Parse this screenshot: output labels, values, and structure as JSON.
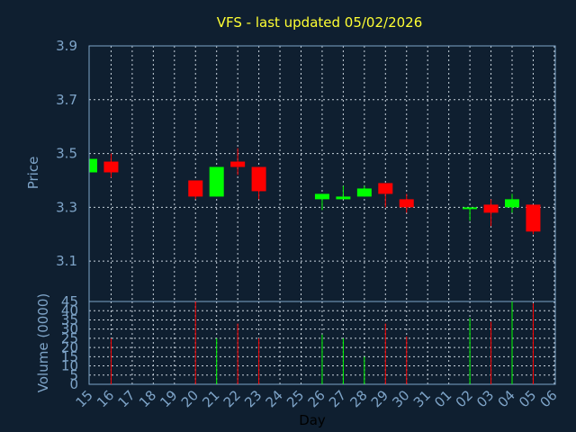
{
  "colors": {
    "background": "#0f1f30",
    "title": "#ffff33",
    "axis_text": "#7ea4c8",
    "up": "#00ff00",
    "down": "#ff0000",
    "grid": "#c8d2dc"
  },
  "chart_data": {
    "type": "candlestick",
    "title": "VFS - last updated 05/02/2026",
    "xlabel": "Day",
    "price_axis": {
      "label": "Price",
      "range": [
        2.95,
        3.9
      ],
      "ticks": [
        "3.9",
        "3.7",
        "3.5",
        "3.3",
        "3.1"
      ],
      "grid": true
    },
    "volume_axis": {
      "label": "Volume (0000)",
      "unit": "x10000",
      "range": [
        0,
        45
      ],
      "ticks": [
        "45",
        "40",
        "35",
        "30",
        "25",
        "20",
        "15",
        "10",
        "5",
        "0"
      ],
      "grid": true
    },
    "x_ticks": [
      "15",
      "16",
      "17",
      "18",
      "19",
      "20",
      "21",
      "22",
      "23",
      "24",
      "25",
      "26",
      "27",
      "28",
      "29",
      "30",
      "31",
      "01",
      "02",
      "03",
      "04",
      "05",
      "06"
    ],
    "candles": [
      {
        "day": "15",
        "open": 3.43,
        "high": 3.48,
        "low": 3.43,
        "close": 3.48,
        "volume": null
      },
      {
        "day": "16",
        "open": 3.47,
        "high": 3.5,
        "low": 3.41,
        "close": 3.43,
        "volume": 25
      },
      {
        "day": "20",
        "open": 3.4,
        "high": 3.4,
        "low": 3.33,
        "close": 3.34,
        "volume": 45
      },
      {
        "day": "21",
        "open": 3.34,
        "high": 3.45,
        "low": 3.34,
        "close": 3.45,
        "volume": 25
      },
      {
        "day": "22",
        "open": 3.47,
        "high": 3.52,
        "low": 3.42,
        "close": 3.45,
        "volume": 33
      },
      {
        "day": "23",
        "open": 3.45,
        "high": 3.45,
        "low": 3.33,
        "close": 3.36,
        "volume": 25
      },
      {
        "day": "26",
        "open": 3.33,
        "high": 3.35,
        "low": 3.29,
        "close": 3.35,
        "volume": 27
      },
      {
        "day": "27",
        "open": 3.33,
        "high": 3.38,
        "low": 3.33,
        "close": 3.34,
        "volume": 25
      },
      {
        "day": "28",
        "open": 3.34,
        "high": 3.38,
        "low": 3.34,
        "close": 3.37,
        "volume": 15
      },
      {
        "day": "29",
        "open": 3.39,
        "high": 3.39,
        "low": 3.3,
        "close": 3.35,
        "volume": 33
      },
      {
        "day": "30",
        "open": 3.33,
        "high": 3.35,
        "low": 3.28,
        "close": 3.3,
        "volume": 26
      },
      {
        "day": "02",
        "open": 3.3,
        "high": 3.3,
        "low": 3.25,
        "close": 3.3,
        "volume": 36
      },
      {
        "day": "03",
        "open": 3.31,
        "high": 3.33,
        "low": 3.23,
        "close": 3.28,
        "volume": 34
      },
      {
        "day": "04",
        "open": 3.3,
        "high": 3.35,
        "low": 3.28,
        "close": 3.33,
        "volume": 45
      },
      {
        "day": "05",
        "open": 3.31,
        "high": 3.31,
        "low": 3.2,
        "close": 3.21,
        "volume": 44
      }
    ]
  }
}
